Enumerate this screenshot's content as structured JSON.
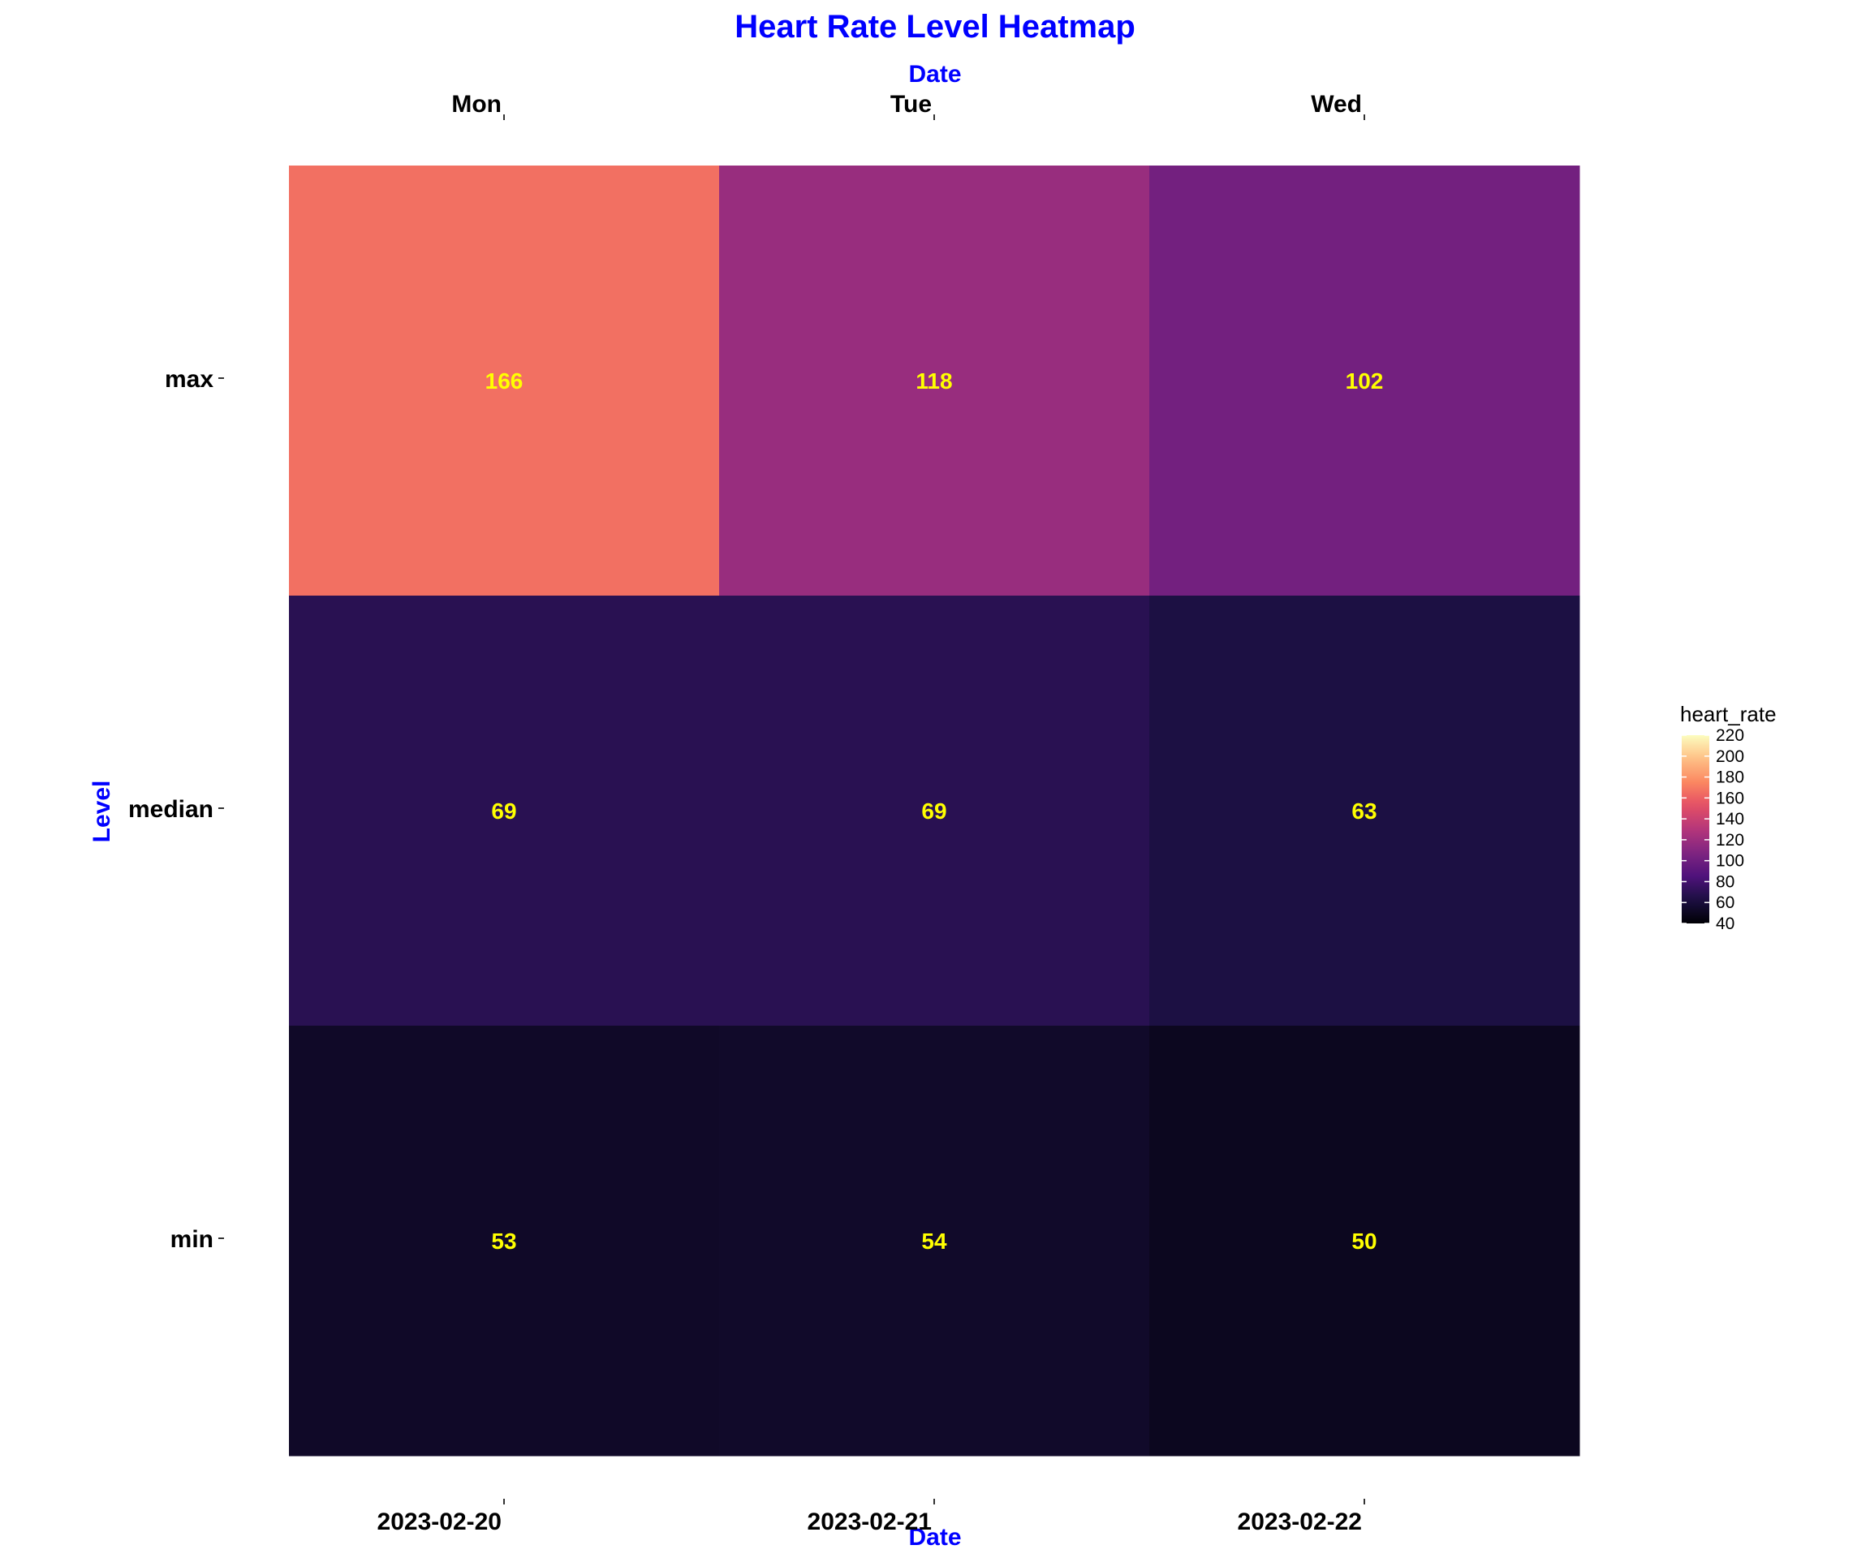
{
  "chart_data": {
    "type": "heatmap",
    "title": "Heart Rate Level Heatmap",
    "xlabel": "Date",
    "ylabel": "Level",
    "x_categories": [
      "2023-02-20",
      "2023-02-21",
      "2023-02-22"
    ],
    "x_secondary_labels": [
      "Mon",
      "Tue",
      "Wed"
    ],
    "y_categories": [
      "max",
      "median",
      "min"
    ],
    "values": [
      [
        166,
        118,
        102
      ],
      [
        69,
        69,
        63
      ],
      [
        53,
        54,
        50
      ]
    ],
    "colorbar": {
      "title": "heart_rate",
      "range": [
        40,
        220
      ],
      "ticks": [
        40,
        60,
        80,
        100,
        120,
        140,
        160,
        180,
        200,
        220
      ],
      "colormap": "magma"
    },
    "grid": false,
    "legend_position": "right",
    "colors": {
      "title": "#0000ff",
      "axis_title": "#0000ff",
      "cell_label": "#ffff00"
    }
  }
}
